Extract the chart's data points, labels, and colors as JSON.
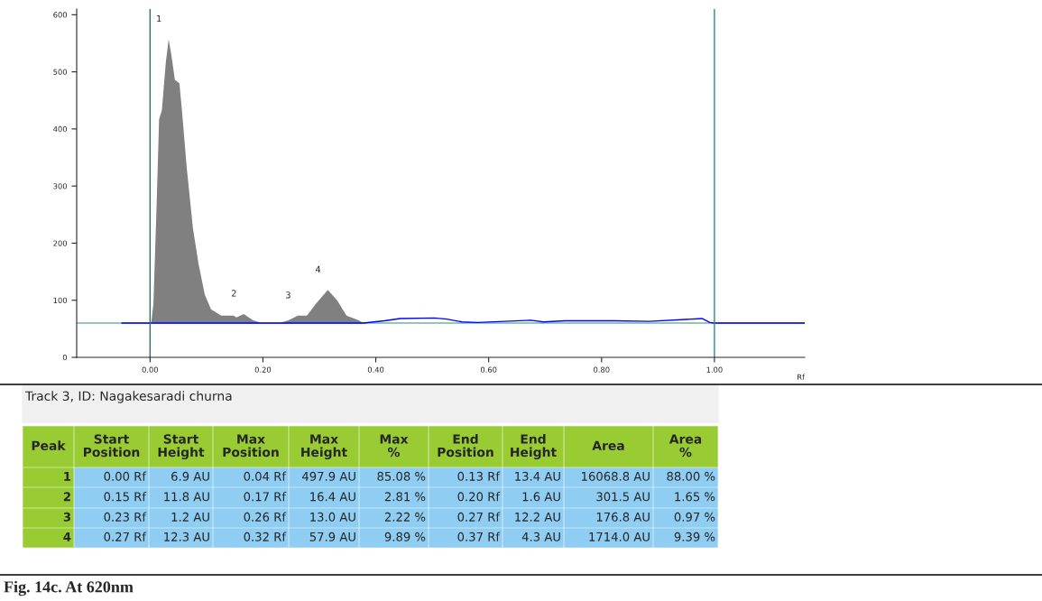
{
  "chart_data": {
    "type": "area",
    "title": "Fig. 14c. At 620nm",
    "subtitle": "Track 3, ID: Nagakesaradi churna",
    "xlabel": "Rf",
    "xlim": [
      -0.13,
      1.16
    ],
    "ylim": [
      0,
      610
    ],
    "xticks": [
      {
        "value": 0,
        "label": "0.00"
      },
      {
        "value": 0.2,
        "label": "0.20"
      },
      {
        "value": 0.4,
        "label": "0.40"
      },
      {
        "value": 0.6,
        "label": "0.60"
      },
      {
        "value": 0.8,
        "label": "0.80"
      },
      {
        "value": 1.0,
        "label": "1.00"
      }
    ],
    "yticks": [
      0,
      100,
      200,
      300,
      400,
      500,
      600
    ],
    "grid": false,
    "legend": false,
    "series": [
      {
        "color": "#808080",
        "x": [
          0.002,
          0.006,
          0.012,
          0.016,
          0.021,
          0.028,
          0.033,
          0.038,
          0.044,
          0.052,
          0.057,
          0.065,
          0.076,
          0.086,
          0.097,
          0.108,
          0.126,
          0.148,
          0.153,
          0.166,
          0.182,
          0.198,
          0.23,
          0.246,
          0.262,
          0.278,
          0.294,
          0.315,
          0.332,
          0.348,
          0.369,
          0.378
        ],
        "values": [
          60,
          94,
          279,
          417,
          433,
          517,
          557,
          528,
          486,
          480,
          427,
          332,
          226,
          163,
          110,
          84,
          73,
          73,
          70,
          76,
          65,
          60,
          60,
          65,
          73,
          73,
          94,
          118,
          99,
          73,
          65,
          60
        ]
      },
      {
        "type": "line",
        "color": "#0000ff",
        "x": [
          -0.05,
          0.0,
          0.378,
          0.415,
          0.443,
          0.504,
          0.526,
          0.553,
          0.58,
          0.675,
          0.697,
          0.735,
          0.785,
          0.824,
          0.884,
          0.978,
          0.992,
          1.0,
          1.16
        ],
        "values": [
          60,
          60,
          60,
          64,
          68,
          69,
          67,
          62,
          61,
          65,
          62,
          64,
          64,
          64,
          63,
          68,
          61,
          60,
          60
        ]
      }
    ],
    "ref_lines": [
      {
        "axis": "y",
        "value": 60,
        "color": "#2e8b80"
      },
      {
        "axis": "x",
        "value": 0,
        "color": "#2e6b6b"
      },
      {
        "axis": "x",
        "value": 1.0,
        "color": "#2e8b80"
      }
    ],
    "annotations": [
      {
        "text": "1",
        "x": 0.033,
        "y": 557
      },
      {
        "text": "2",
        "x": 0.166,
        "y": 76
      },
      {
        "text": "3",
        "x": 0.262,
        "y": 73
      },
      {
        "text": "4",
        "x": 0.315,
        "y": 118
      },
      "Peak",
      "Start\nPosition",
      "Start\nHeight",
      "Max\nPosition",
      "Max\nHeight",
      "Max\n%",
      "End\nPosition",
      "End\nHeight",
      "Area",
      "Area\n%",
      "1",
      "0.00 Rf",
      "6.9 AU",
      "0.04 Rf",
      "497.9 AU",
      "85.08 %",
      "0.13 Rf",
      "13.4 AU",
      "16068.8 AU",
      "88.00 %",
      "2",
      "0.15 Rf",
      "11.8 AU",
      "0.17 Rf",
      "16.4 AU",
      "2.81 %",
      "0.20 Rf",
      "1.6 AU",
      "301.5 AU",
      "1.65 %",
      "3",
      "0.23 Rf",
      "1.2 AU",
      "0.26 Rf",
      "13.0 AU",
      "2.22 %",
      "0.27 Rf",
      "12.2 AU",
      "176.8 AU",
      "0.97 %",
      "4",
      "0.27 Rf",
      "12.3 AU",
      "0.32 Rf",
      "57.9 AU",
      "9.89 %",
      "0.37 Rf",
      "4.3 AU",
      "1714.0 AU",
      "9.39 %"
    ]
  }
}
